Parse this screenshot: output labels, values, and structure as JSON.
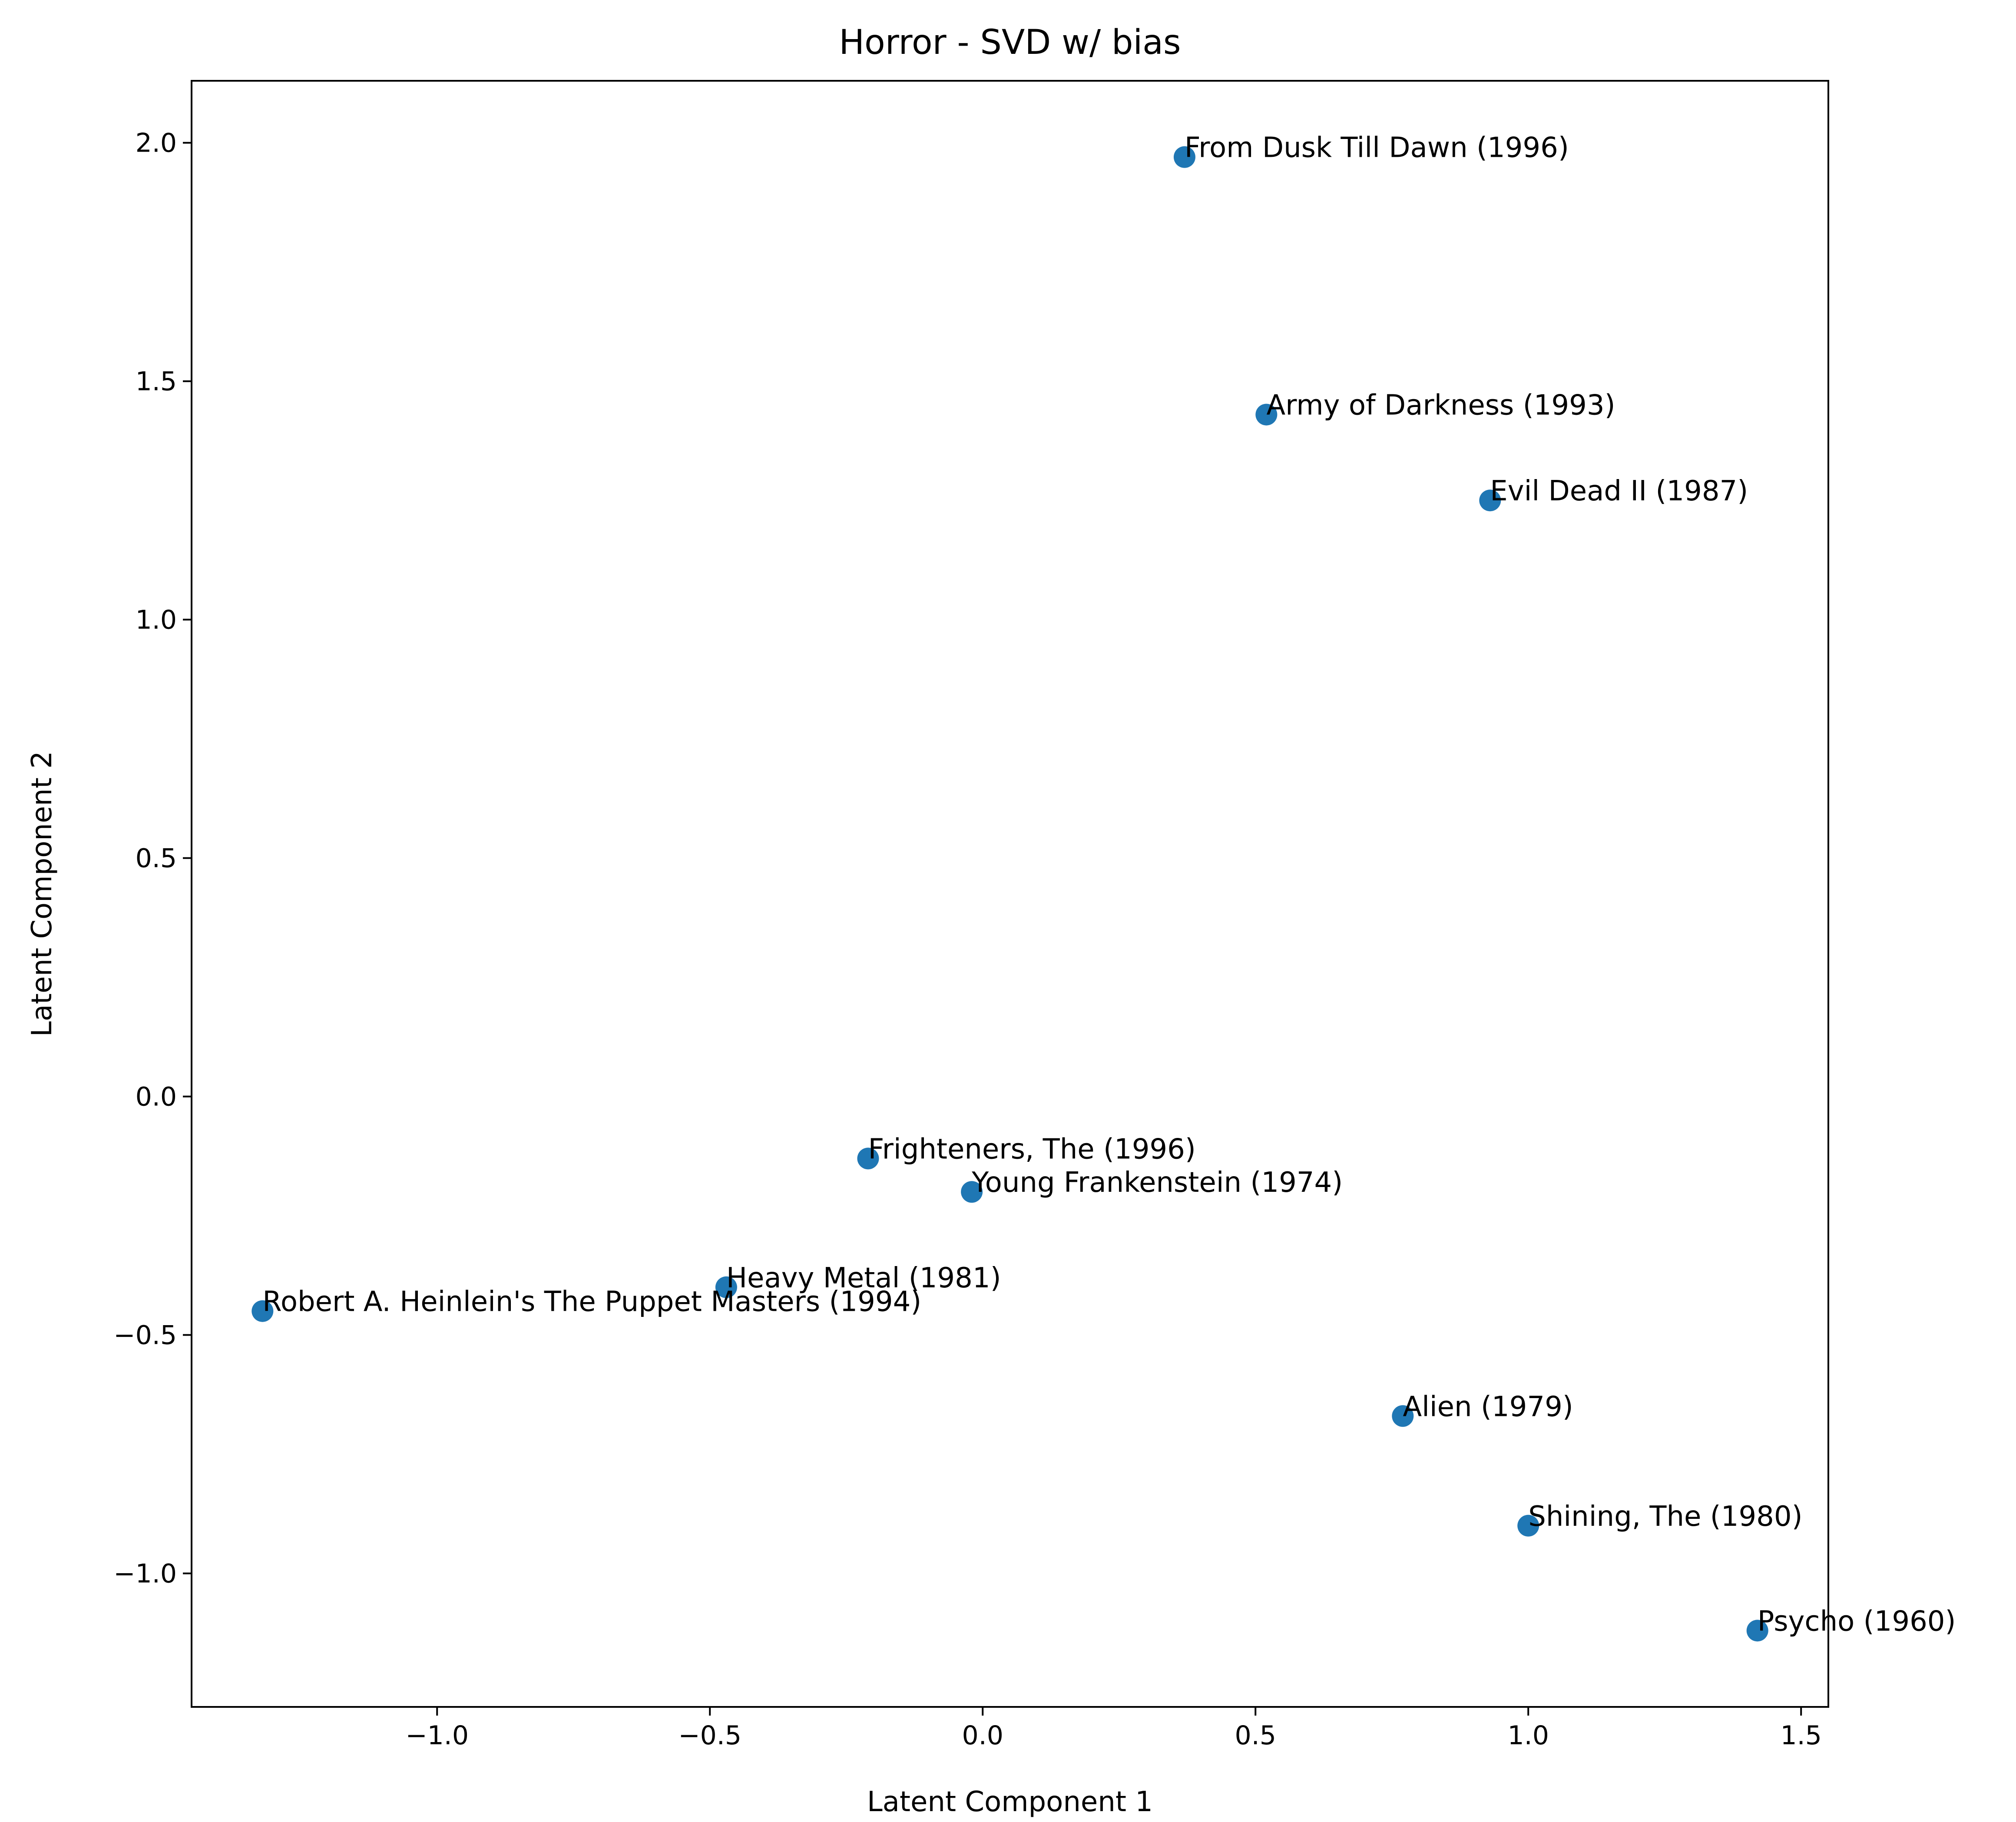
{
  "chart_data": {
    "type": "scatter",
    "title": "Horror - SVD w/ bias",
    "xlabel": "Latent Component 1",
    "ylabel": "Latent Component 2",
    "xlim": [
      -1.45,
      1.55
    ],
    "ylim": [
      -1.28,
      2.13
    ],
    "grid": false,
    "marker_color": "#1f77b4",
    "xticks": [
      {
        "value": -1.0,
        "label": "−1.0"
      },
      {
        "value": -0.5,
        "label": "−0.5"
      },
      {
        "value": 0.0,
        "label": "0.0"
      },
      {
        "value": 0.5,
        "label": "0.5"
      },
      {
        "value": 1.0,
        "label": "1.0"
      },
      {
        "value": 1.5,
        "label": "1.5"
      }
    ],
    "yticks": [
      {
        "value": -1.0,
        "label": "−1.0"
      },
      {
        "value": -0.5,
        "label": "−0.5"
      },
      {
        "value": 0.0,
        "label": "0.0"
      },
      {
        "value": 0.5,
        "label": "0.5"
      },
      {
        "value": 1.0,
        "label": "1.0"
      },
      {
        "value": 1.5,
        "label": "1.5"
      },
      {
        "value": 2.0,
        "label": "2.0"
      }
    ],
    "points": [
      {
        "label": "From Dusk Till Dawn (1996)",
        "x": 0.37,
        "y": 1.97
      },
      {
        "label": "Army of Darkness (1993)",
        "x": 0.52,
        "y": 1.43
      },
      {
        "label": "Evil Dead II (1987)",
        "x": 0.93,
        "y": 1.25
      },
      {
        "label": "Frighteners, The (1996)",
        "x": -0.21,
        "y": -0.13
      },
      {
        "label": "Young Frankenstein (1974)",
        "x": -0.02,
        "y": -0.2
      },
      {
        "label": "Heavy Metal (1981)",
        "x": -0.47,
        "y": -0.4
      },
      {
        "label": "Robert A. Heinlein's The Puppet Masters (1994)",
        "x": -1.32,
        "y": -0.45
      },
      {
        "label": "Alien (1979)",
        "x": 0.77,
        "y": -0.67
      },
      {
        "label": "Shining, The (1980)",
        "x": 1.0,
        "y": -0.9
      },
      {
        "label": "Psycho (1960)",
        "x": 1.42,
        "y": -1.12
      }
    ]
  }
}
